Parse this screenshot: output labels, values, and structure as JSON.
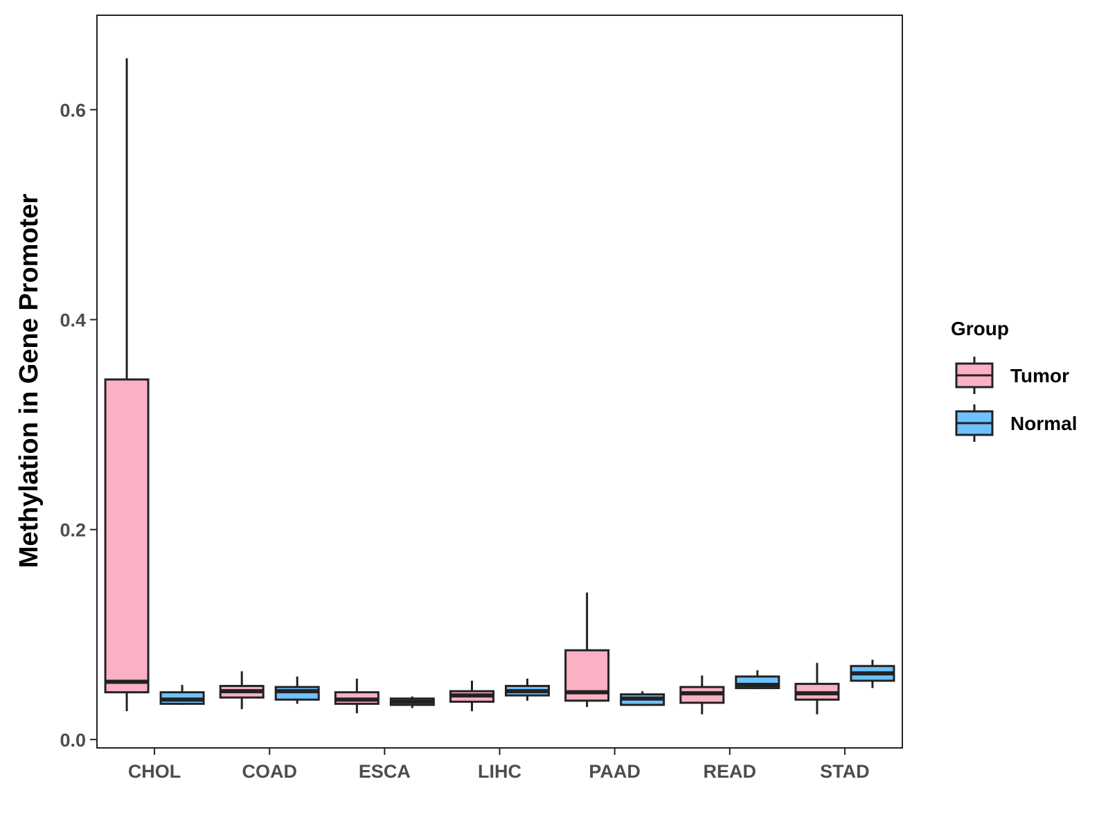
{
  "chart_data": {
    "type": "boxplot",
    "title": "",
    "xlabel": "",
    "ylabel": "Methylation in Gene Promoter",
    "ylim": [
      -0.008,
      0.69
    ],
    "yticks": [
      0.0,
      0.2,
      0.4,
      0.6
    ],
    "ytick_labels": [
      "0.0",
      "0.2",
      "0.4",
      "0.6"
    ],
    "grid": false,
    "legend_position": "right",
    "categories": [
      "CHOL",
      "COAD",
      "ESCA",
      "LIHC",
      "PAAD",
      "READ",
      "STAD"
    ],
    "series": [
      {
        "name": "Tumor",
        "color": "#fbb1c3",
        "boxes": [
          {
            "min": 0.027,
            "q1": 0.045,
            "median": 0.055,
            "q3": 0.343,
            "max": 0.649
          },
          {
            "min": 0.029,
            "q1": 0.04,
            "median": 0.046,
            "q3": 0.051,
            "max": 0.065
          },
          {
            "min": 0.025,
            "q1": 0.034,
            "median": 0.038,
            "q3": 0.045,
            "max": 0.058
          },
          {
            "min": 0.027,
            "q1": 0.036,
            "median": 0.042,
            "q3": 0.046,
            "max": 0.056
          },
          {
            "min": 0.031,
            "q1": 0.037,
            "median": 0.045,
            "q3": 0.085,
            "max": 0.14
          },
          {
            "min": 0.024,
            "q1": 0.035,
            "median": 0.044,
            "q3": 0.05,
            "max": 0.061
          },
          {
            "min": 0.024,
            "q1": 0.038,
            "median": 0.044,
            "q3": 0.053,
            "max": 0.073
          }
        ]
      },
      {
        "name": "Normal",
        "color": "#6ec3ff",
        "boxes": [
          {
            "min": 0.033,
            "q1": 0.034,
            "median": 0.038,
            "q3": 0.045,
            "max": 0.052
          },
          {
            "min": 0.034,
            "q1": 0.038,
            "median": 0.046,
            "q3": 0.05,
            "max": 0.06
          },
          {
            "min": 0.03,
            "q1": 0.033,
            "median": 0.036,
            "q3": 0.039,
            "max": 0.041
          },
          {
            "min": 0.037,
            "q1": 0.042,
            "median": 0.046,
            "q3": 0.051,
            "max": 0.058
          },
          {
            "min": 0.032,
            "q1": 0.033,
            "median": 0.039,
            "q3": 0.043,
            "max": 0.046
          },
          {
            "min": 0.048,
            "q1": 0.049,
            "median": 0.052,
            "q3": 0.06,
            "max": 0.066
          },
          {
            "min": 0.049,
            "q1": 0.056,
            "median": 0.063,
            "q3": 0.07,
            "max": 0.076
          }
        ]
      }
    ],
    "legend": {
      "title": "Group",
      "entries": [
        "Tumor",
        "Normal"
      ]
    }
  },
  "colors": {
    "outline": "#222222",
    "axis_text": "#4d4d4d",
    "panel_border": "#222222"
  }
}
